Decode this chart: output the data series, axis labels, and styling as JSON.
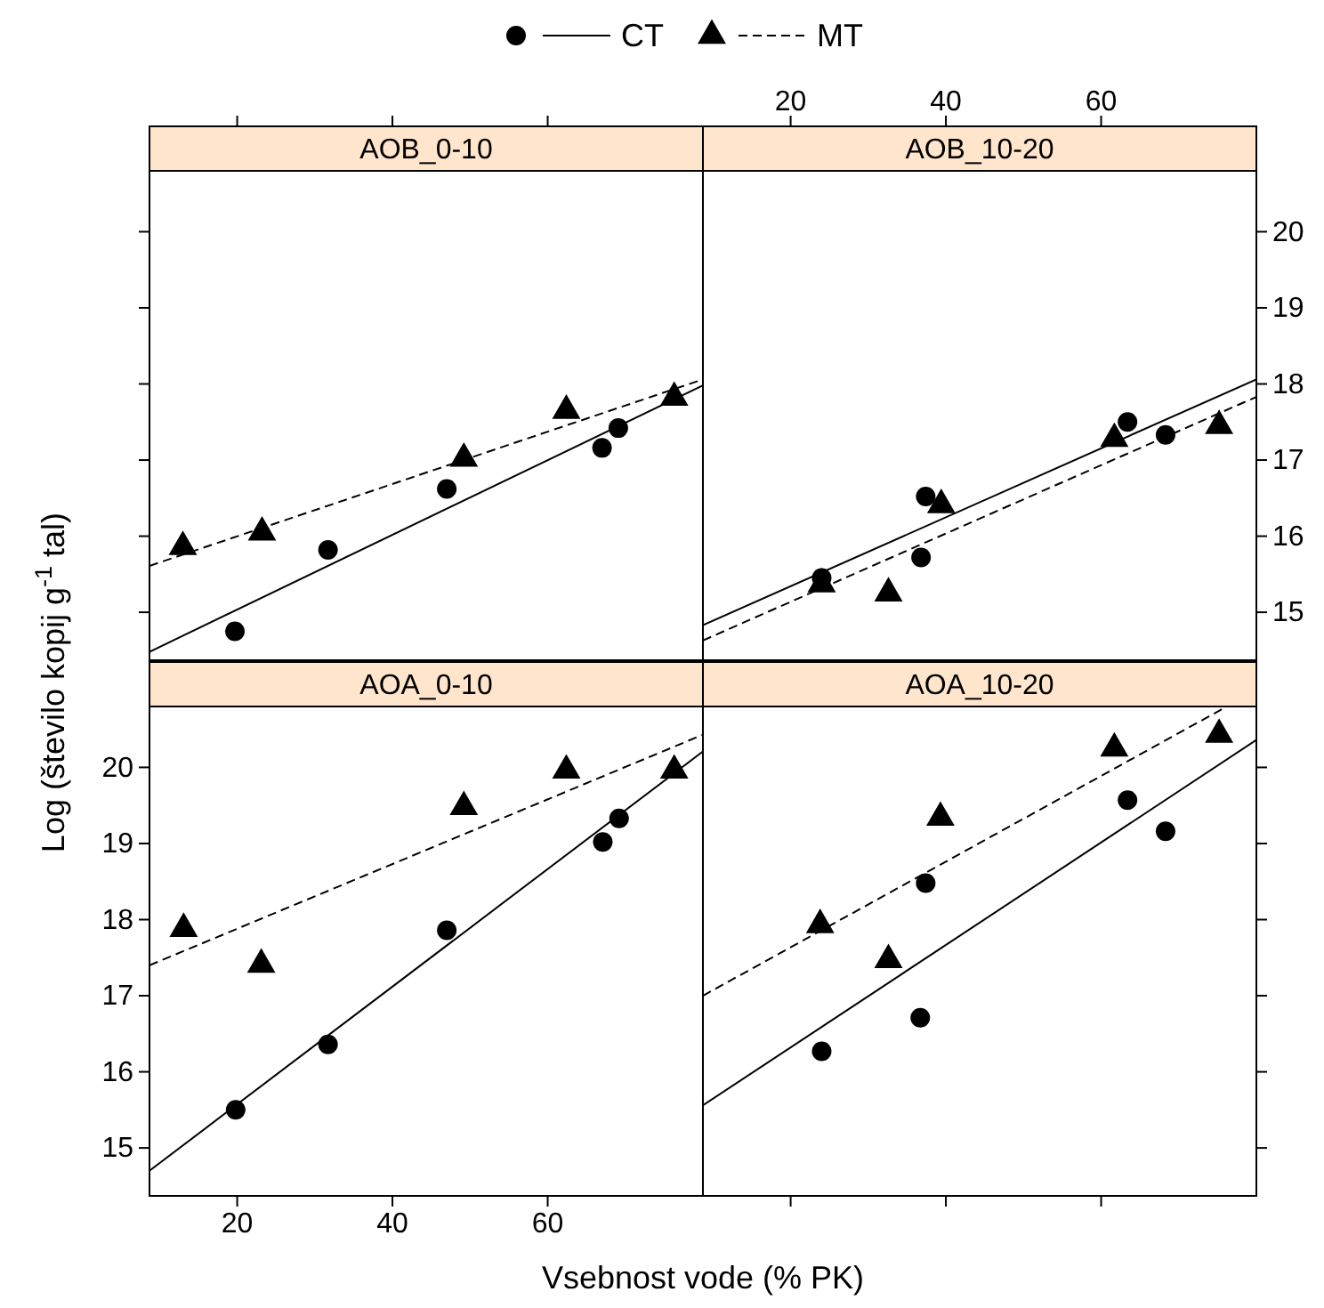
{
  "chart_data": [
    {
      "type": "scatter",
      "title": "AOB_0-10",
      "xlabel": "Vsebnost vode (% PK)",
      "ylabel": "Log (število kopij  g$^{-1}$ tal)",
      "legend": "top",
      "tick_labels": false,
      "xlim": [
        8.7,
        80
      ],
      "xticks": [
        20,
        40,
        60
      ],
      "ylim": [
        14.37,
        20.8
      ],
      "yticks": [
        15,
        16,
        17,
        18,
        19,
        20
      ],
      "series": [
        {
          "name": "CT",
          "marker": "circle",
          "color": "#000000",
          "x": [
            19.7,
            31.7,
            47.0,
            67.0,
            69.1
          ],
          "values": [
            14.75,
            15.82,
            16.62,
            17.16,
            17.42
          ]
        },
        {
          "name": "MT",
          "marker": "triangle",
          "color": "#000000",
          "x": [
            13.0,
            23.2,
            49.2,
            62.4,
            76.3
          ],
          "values": [
            15.86,
            16.05,
            17.02,
            17.65,
            17.82
          ]
        },
        {
          "type": "line",
          "line_style": "solid",
          "color": "#000000",
          "x": [
            8.7,
            80
          ],
          "values": [
            14.48,
            17.98
          ]
        },
        {
          "type": "line",
          "line_style": "dashed",
          "color": "#000000",
          "x": [
            8.7,
            80
          ],
          "values": [
            15.61,
            18.06
          ]
        }
      ]
    },
    {
      "type": "scatter",
      "title": "AOB_10-20",
      "xlim": [
        8.7,
        80
      ],
      "xticks": [
        20,
        40,
        60
      ],
      "ylim": [
        14.37,
        20.8
      ],
      "yticks": [
        15,
        16,
        17,
        18,
        19,
        20
      ],
      "series": [
        {
          "name": "CT",
          "marker": "circle",
          "color": "#000000",
          "x": [
            24.0,
            36.8,
            37.4,
            63.4,
            68.3
          ],
          "values": [
            15.45,
            15.72,
            16.52,
            17.5,
            17.33
          ]
        },
        {
          "name": "MT",
          "marker": "triangle",
          "color": "#000000",
          "x": [
            24.0,
            32.6,
            39.4,
            61.7,
            75.2
          ],
          "values": [
            15.37,
            15.25,
            16.41,
            17.28,
            17.45
          ]
        },
        {
          "type": "line",
          "line_style": "solid",
          "color": "#000000",
          "x": [
            8.7,
            80
          ],
          "values": [
            14.83,
            18.06
          ]
        },
        {
          "type": "line",
          "line_style": "dashed",
          "color": "#000000",
          "x": [
            8.7,
            80
          ],
          "values": [
            14.63,
            17.83
          ]
        }
      ]
    },
    {
      "type": "scatter",
      "title": "AOA_0-10",
      "xlim": [
        8.7,
        80
      ],
      "xticks": [
        20,
        40,
        60
      ],
      "ylim": [
        14.37,
        20.8
      ],
      "yticks": [
        15,
        16,
        17,
        18,
        19,
        20
      ],
      "series": [
        {
          "name": "CT",
          "marker": "circle",
          "color": "#000000",
          "x": [
            19.8,
            31.7,
            47.0,
            67.1,
            69.2
          ],
          "values": [
            15.5,
            16.36,
            17.86,
            19.02,
            19.33
          ]
        },
        {
          "name": "MT",
          "marker": "triangle",
          "color": "#000000",
          "x": [
            13.1,
            23.1,
            49.2,
            62.4,
            76.3
          ],
          "values": [
            17.88,
            17.41,
            19.48,
            19.96,
            19.96
          ]
        },
        {
          "type": "line",
          "line_style": "solid",
          "color": "#000000",
          "x": [
            8.7,
            80
          ],
          "values": [
            14.7,
            20.21
          ]
        },
        {
          "type": "line",
          "line_style": "dashed",
          "color": "#000000",
          "x": [
            8.7,
            80
          ],
          "values": [
            17.4,
            20.43
          ]
        }
      ]
    },
    {
      "type": "scatter",
      "title": "AOA_10-20",
      "tick_labels": false,
      "xlim": [
        8.7,
        80
      ],
      "xticks": [
        20,
        40,
        60
      ],
      "ylim": [
        14.37,
        20.8
      ],
      "yticks": [
        15,
        16,
        17,
        18,
        19,
        20
      ],
      "series": [
        {
          "name": "CT",
          "marker": "circle",
          "color": "#000000",
          "x": [
            24.0,
            36.7,
            37.4,
            63.4,
            68.3
          ],
          "values": [
            16.27,
            16.71,
            18.48,
            19.57,
            19.16
          ]
        },
        {
          "name": "MT",
          "marker": "triangle",
          "color": "#000000",
          "x": [
            23.8,
            32.6,
            39.3,
            61.7,
            75.2
          ],
          "values": [
            17.93,
            17.47,
            19.34,
            20.25,
            20.43
          ]
        },
        {
          "type": "line",
          "line_style": "solid",
          "color": "#000000",
          "x": [
            8.7,
            80
          ],
          "values": [
            15.56,
            20.36
          ]
        },
        {
          "type": "line",
          "line_style": "dashed",
          "color": "#000000",
          "x": [
            8.7,
            76.2
          ],
          "values": [
            17.0,
            20.8
          ]
        }
      ]
    }
  ]
}
